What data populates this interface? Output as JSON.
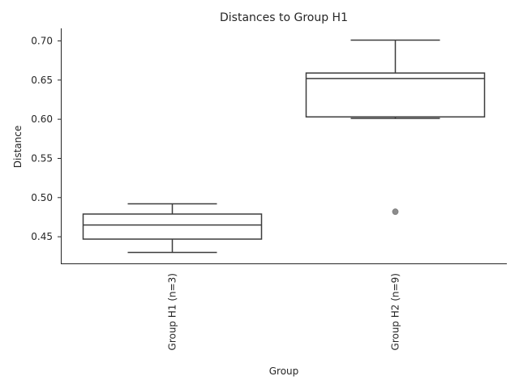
{
  "chart_data": {
    "type": "box",
    "title": "Distances to Group H1",
    "xlabel": "Group",
    "ylabel": "Distance",
    "ylim": [
      0.416,
      0.716
    ],
    "yticks": [
      0.45,
      0.5,
      0.55,
      0.6,
      0.65,
      0.7
    ],
    "ytick_labels": [
      "0.45",
      "0.50",
      "0.55",
      "0.60",
      "0.65",
      "0.70"
    ],
    "grid": false,
    "categories": [
      "Group H1 (n=3)",
      "Group H2 (n=9)"
    ],
    "boxes": [
      {
        "category": "Group H1 (n=3)",
        "whisker_low": 0.43,
        "q1": 0.447,
        "median": 0.465,
        "q3": 0.479,
        "whisker_high": 0.492,
        "outliers": []
      },
      {
        "category": "Group H2 (n=9)",
        "whisker_low": 0.601,
        "q1": 0.603,
        "median": 0.652,
        "q3": 0.659,
        "whisker_high": 0.701,
        "outliers": [
          0.482
        ]
      }
    ],
    "colors": {
      "box_edge": "#3d3d3d",
      "box_fill": "#ffffff",
      "outlier": "#8c8c8c",
      "axis": "#262626"
    }
  }
}
